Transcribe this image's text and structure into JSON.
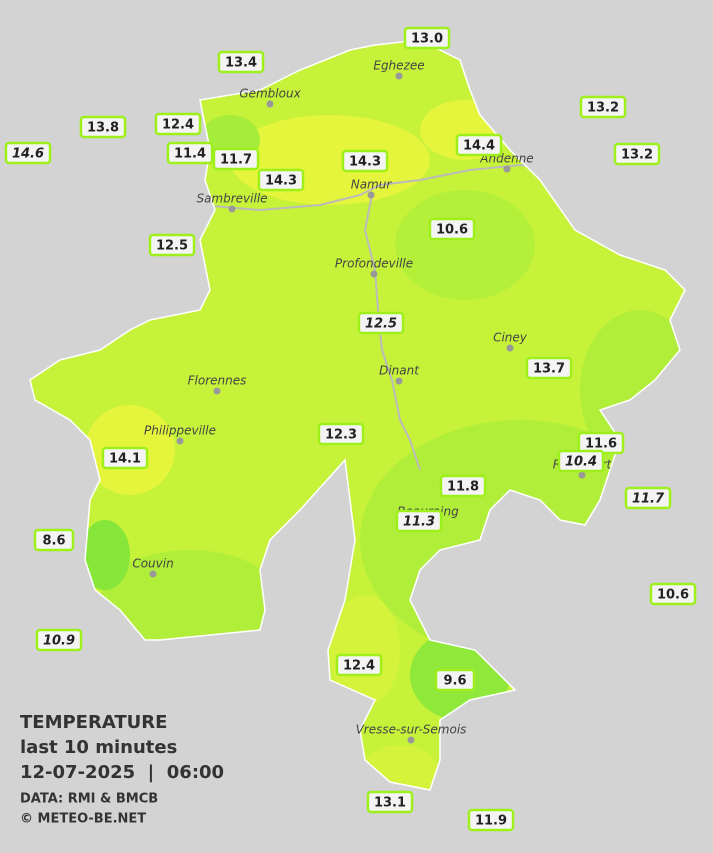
{
  "title": "TEMPERATURE",
  "subtitle": "last 10 minutes",
  "datetime": "12-07-2025  |  06:00",
  "credits": [
    "DATA: RMI & BMCB",
    "© METEO-BE.NET"
  ],
  "towns": [
    "Eghezee",
    "Gembloux",
    "Andenne",
    "Namur",
    "Sambreville",
    "Profondeville",
    "Ciney",
    "Dinant",
    "Florennes",
    "Philippeville",
    "Rochefort",
    "Beauraing",
    "Couvin",
    "Vresse-sur-Semois"
  ],
  "stations": [
    {
      "label": "13.0",
      "italic": false
    },
    {
      "label": "13.4",
      "italic": false
    },
    {
      "label": "13.2",
      "italic": false
    },
    {
      "label": "13.8",
      "italic": false
    },
    {
      "label": "12.4",
      "italic": false
    },
    {
      "label": "14.6",
      "italic": true
    },
    {
      "label": "11.4",
      "italic": false
    },
    {
      "label": "11.7",
      "italic": false
    },
    {
      "label": "14.3",
      "italic": false
    },
    {
      "label": "14.4",
      "italic": false
    },
    {
      "label": "13.2",
      "italic": false
    },
    {
      "label": "14.3",
      "italic": false
    },
    {
      "label": "10.6",
      "italic": false
    },
    {
      "label": "12.5",
      "italic": false
    },
    {
      "label": "12.5",
      "italic": true
    },
    {
      "label": "13.7",
      "italic": false
    },
    {
      "label": "12.3",
      "italic": false
    },
    {
      "label": "11.6",
      "italic": false
    },
    {
      "label": "10.4",
      "italic": true
    },
    {
      "label": "14.1",
      "italic": false
    },
    {
      "label": "11.8",
      "italic": false
    },
    {
      "label": "11.7",
      "italic": true
    },
    {
      "label": "11.3",
      "italic": true
    },
    {
      "label": "8.6",
      "italic": false
    },
    {
      "label": "10.6",
      "italic": false
    },
    {
      "label": "10.9",
      "italic": true
    },
    {
      "label": "12.4",
      "italic": false
    },
    {
      "label": "9.6",
      "italic": false
    },
    {
      "label": "13.1",
      "italic": false
    },
    {
      "label": "11.9",
      "italic": false
    }
  ]
}
